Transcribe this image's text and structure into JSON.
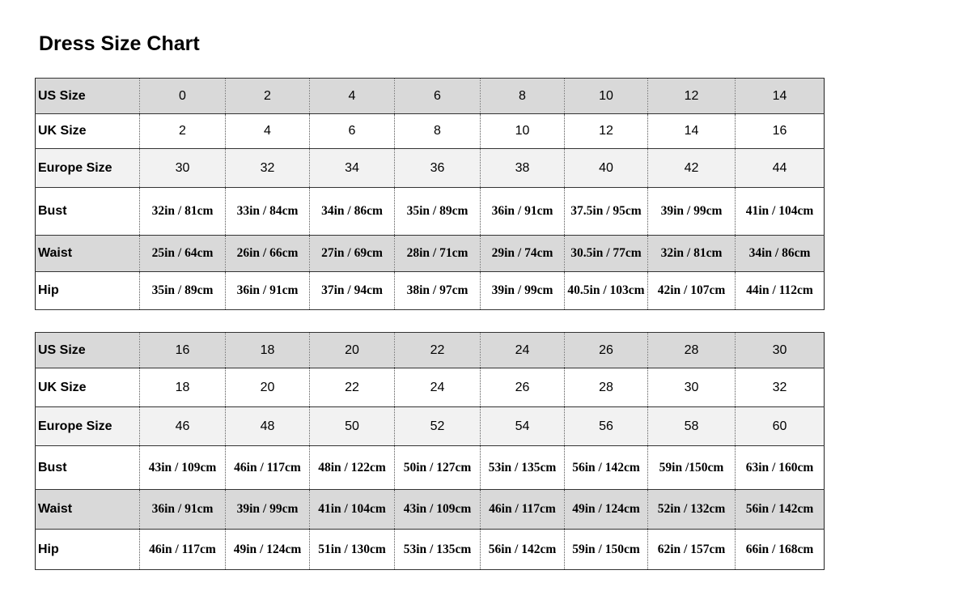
{
  "title": "Dress Size Chart",
  "tables": [
    {
      "rows": [
        {
          "label": "US Size",
          "kind": "size",
          "values": [
            "0",
            "2",
            "4",
            "6",
            "8",
            "10",
            "12",
            "14"
          ]
        },
        {
          "label": "UK Size",
          "kind": "size",
          "values": [
            "2",
            "4",
            "6",
            "8",
            "10",
            "12",
            "14",
            "16"
          ]
        },
        {
          "label": "Europe Size",
          "kind": "size",
          "values": [
            "30",
            "32",
            "34",
            "36",
            "38",
            "40",
            "42",
            "44"
          ]
        },
        {
          "label": "Bust",
          "kind": "meas",
          "values": [
            "32in / 81cm",
            "33in / 84cm",
            "34in / 86cm",
            "35in / 89cm",
            "36in / 91cm",
            "37.5in / 95cm",
            "39in / 99cm",
            "41in / 104cm"
          ]
        },
        {
          "label": "Waist",
          "kind": "meas",
          "values": [
            "25in / 64cm",
            "26in / 66cm",
            "27in / 69cm",
            "28in / 71cm",
            "29in / 74cm",
            "30.5in / 77cm",
            "32in / 81cm",
            "34in / 86cm"
          ]
        },
        {
          "label": "Hip",
          "kind": "meas",
          "values": [
            "35in / 89cm",
            "36in / 91cm",
            "37in / 94cm",
            "38in / 97cm",
            "39in / 99cm",
            "40.5in / 103cm",
            "42in / 107cm",
            "44in / 112cm"
          ]
        }
      ]
    },
    {
      "rows": [
        {
          "label": "US Size",
          "kind": "size",
          "values": [
            "16",
            "18",
            "20",
            "22",
            "24",
            "26",
            "28",
            "30"
          ]
        },
        {
          "label": "UK Size",
          "kind": "size",
          "values": [
            "18",
            "20",
            "22",
            "24",
            "26",
            "28",
            "30",
            "32"
          ]
        },
        {
          "label": "Europe Size",
          "kind": "size",
          "values": [
            "46",
            "48",
            "50",
            "52",
            "54",
            "56",
            "58",
            "60"
          ]
        },
        {
          "label": "Bust",
          "kind": "meas",
          "values": [
            "43in / 109cm",
            "46in / 117cm",
            "48in / 122cm",
            "50in / 127cm",
            "53in / 135cm",
            "56in / 142cm",
            "59in /150cm",
            "63in / 160cm"
          ]
        },
        {
          "label": "Waist",
          "kind": "meas",
          "values": [
            "36in / 91cm",
            "39in / 99cm",
            "41in / 104cm",
            "43in / 109cm",
            "46in / 117cm",
            "49in / 124cm",
            "52in / 132cm",
            "56in / 142cm"
          ]
        },
        {
          "label": "Hip",
          "kind": "meas",
          "values": [
            "46in / 117cm",
            "49in / 124cm",
            "51in / 130cm",
            "53in / 135cm",
            "56in / 142cm",
            "59in / 150cm",
            "62in / 157cm",
            "66in / 168cm"
          ]
        }
      ]
    }
  ],
  "colors": {
    "header_row": "#d9d9d9",
    "europe_row": "#f2f2f2",
    "waist_row": "#d9d9d9"
  }
}
